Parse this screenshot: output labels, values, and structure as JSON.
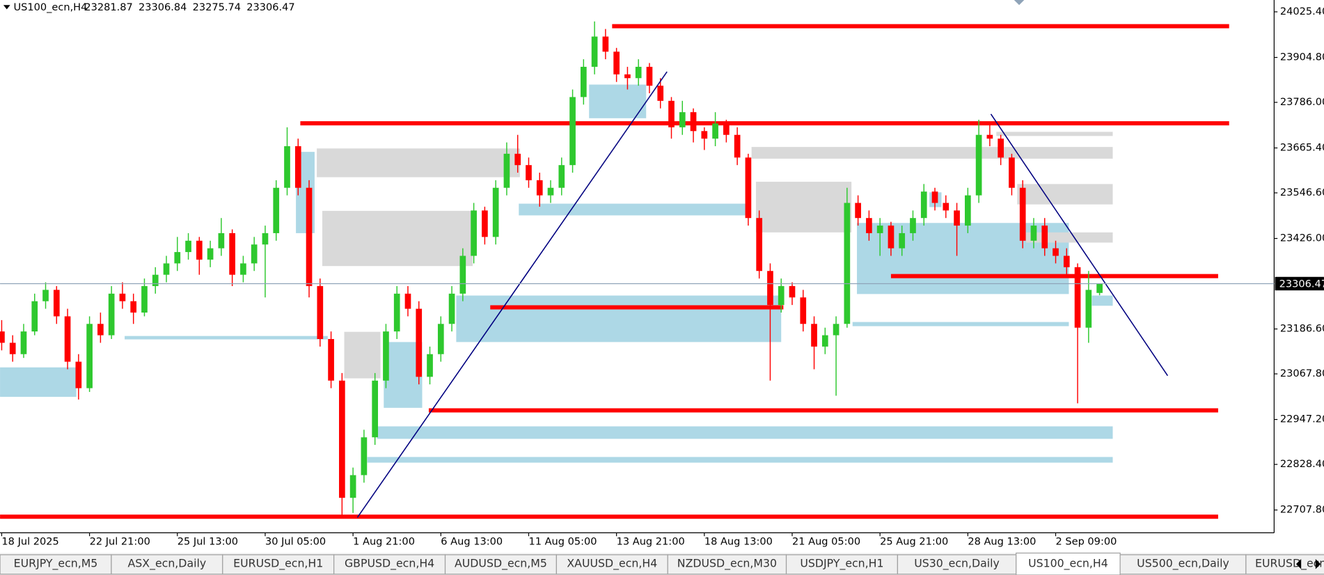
{
  "chart_data": {
    "type": "candlestick",
    "symbol": "US100_ecn,H4",
    "colors": {
      "up": "#2ec82e",
      "down": "#ff0000",
      "level": "#ff0000",
      "price_line": "#8fa3b8"
    },
    "xlim": [
      -0.15,
      115.9
    ],
    "ylim": [
      22647.5,
      24056.7
    ],
    "xticks": [
      {
        "value": 0,
        "label": "18 Jul 2025"
      },
      {
        "value": 8,
        "label": "22 Jul 21:00"
      },
      {
        "value": 16,
        "label": "25 Jul 13:00"
      },
      {
        "value": 24,
        "label": "30 Jul 05:00"
      },
      {
        "value": 32,
        "label": "1 Aug 21:00"
      },
      {
        "value": 40,
        "label": "6 Aug 13:00"
      },
      {
        "value": 48,
        "label": "11 Aug 05:00"
      },
      {
        "value": 56,
        "label": "13 Aug 21:00"
      },
      {
        "value": 64,
        "label": "18 Aug 13:00"
      },
      {
        "value": 72,
        "label": "21 Aug 05:00"
      },
      {
        "value": 80,
        "label": "25 Aug 21:00"
      },
      {
        "value": 88,
        "label": "28 Aug 13:00"
      },
      {
        "value": 96,
        "label": "2 Sep 09:00"
      }
    ],
    "yticks": [
      {
        "value": 24025.4,
        "label": "24025.40"
      },
      {
        "value": 23904.8,
        "label": "23904.80"
      },
      {
        "value": 23786,
        "label": "23786.00"
      },
      {
        "value": 23665.4,
        "label": "23665.40"
      },
      {
        "value": 23546.6,
        "label": "23546.60"
      },
      {
        "value": 23426,
        "label": "23426.00"
      },
      {
        "value": 23186.6,
        "label": "23186.60"
      },
      {
        "value": 23067.8,
        "label": "23067.80"
      },
      {
        "value": 22947.2,
        "label": "22947.20"
      },
      {
        "value": 22828.4,
        "label": "22828.40"
      },
      {
        "value": 22707.8,
        "label": "22707.80"
      }
    ],
    "candles": [
      [
        23180,
        23210,
        23130,
        23150
      ],
      [
        23150,
        23170,
        23100,
        23120
      ],
      [
        23120,
        23200,
        23110,
        23180
      ],
      [
        23180,
        23280,
        23170,
        23260
      ],
      [
        23260,
        23310,
        23240,
        23290
      ],
      [
        23290,
        23300,
        23200,
        23220
      ],
      [
        23220,
        23240,
        23080,
        23100
      ],
      [
        23100,
        23120,
        23000,
        23030
      ],
      [
        23030,
        23220,
        23020,
        23200
      ],
      [
        23200,
        23230,
        23150,
        23170
      ],
      [
        23170,
        23300,
        23160,
        23280
      ],
      [
        23280,
        23310,
        23240,
        23260
      ],
      [
        23260,
        23280,
        23200,
        23230
      ],
      [
        23230,
        23320,
        23220,
        23300
      ],
      [
        23300,
        23350,
        23280,
        23330
      ],
      [
        23330,
        23380,
        23310,
        23360
      ],
      [
        23360,
        23430,
        23340,
        23390
      ],
      [
        23390,
        23440,
        23370,
        23420
      ],
      [
        23420,
        23430,
        23330,
        23370
      ],
      [
        23370,
        23420,
        23350,
        23400
      ],
      [
        23400,
        23480,
        23380,
        23440
      ],
      [
        23440,
        23450,
        23300,
        23330
      ],
      [
        23330,
        23380,
        23310,
        23360
      ],
      [
        23360,
        23430,
        23340,
        23410
      ],
      [
        23410,
        23460,
        23270,
        23440
      ],
      [
        23440,
        23580,
        23420,
        23560
      ],
      [
        23560,
        23720,
        23540,
        23670
      ],
      [
        23670,
        23690,
        23540,
        23560
      ],
      [
        23560,
        23580,
        23270,
        23300
      ],
      [
        23300,
        23320,
        23140,
        23160
      ],
      [
        23160,
        23180,
        23030,
        23050
      ],
      [
        23050,
        23070,
        22690,
        22740
      ],
      [
        22740,
        22820,
        22700,
        22800
      ],
      [
        22800,
        22920,
        22780,
        22900
      ],
      [
        22900,
        23070,
        22880,
        23050
      ],
      [
        23050,
        23200,
        23030,
        23180
      ],
      [
        23180,
        23300,
        23160,
        23280
      ],
      [
        23280,
        23300,
        23220,
        23240
      ],
      [
        23240,
        23260,
        23040,
        23060
      ],
      [
        23060,
        23140,
        23040,
        23120
      ],
      [
        23120,
        23220,
        23100,
        23200
      ],
      [
        23200,
        23300,
        23180,
        23280
      ],
      [
        23280,
        23400,
        23260,
        23380
      ],
      [
        23380,
        23520,
        23360,
        23500
      ],
      [
        23500,
        23510,
        23410,
        23430
      ],
      [
        23430,
        23580,
        23410,
        23560
      ],
      [
        23560,
        23680,
        23540,
        23650
      ],
      [
        23650,
        23700,
        23600,
        23620
      ],
      [
        23620,
        23640,
        23560,
        23580
      ],
      [
        23580,
        23600,
        23510,
        23540
      ],
      [
        23540,
        23580,
        23520,
        23560
      ],
      [
        23560,
        23640,
        23540,
        23620
      ],
      [
        23620,
        23820,
        23600,
        23800
      ],
      [
        23800,
        23900,
        23780,
        23880
      ],
      [
        23880,
        24000,
        23860,
        23960
      ],
      [
        23960,
        23980,
        23900,
        23920
      ],
      [
        23920,
        23930,
        23840,
        23860
      ],
      [
        23860,
        23880,
        23820,
        23850
      ],
      [
        23850,
        23900,
        23830,
        23880
      ],
      [
        23880,
        23890,
        23810,
        23830
      ],
      [
        23830,
        23850,
        23770,
        23790
      ],
      [
        23790,
        23800,
        23690,
        23720
      ],
      [
        23720,
        23790,
        23700,
        23760
      ],
      [
        23760,
        23770,
        23680,
        23710
      ],
      [
        23710,
        23720,
        23660,
        23690
      ],
      [
        23690,
        23760,
        23670,
        23730
      ],
      [
        23730,
        23740,
        23680,
        23700
      ],
      [
        23700,
        23720,
        23620,
        23640
      ],
      [
        23640,
        23650,
        23460,
        23480
      ],
      [
        23480,
        23500,
        23320,
        23340
      ],
      [
        23340,
        23360,
        23050,
        23250
      ],
      [
        23250,
        23320,
        23230,
        23300
      ],
      [
        23300,
        23310,
        23250,
        23270
      ],
      [
        23270,
        23290,
        23180,
        23200
      ],
      [
        23200,
        23220,
        23080,
        23140
      ],
      [
        23140,
        23190,
        23120,
        23170
      ],
      [
        23170,
        23220,
        23010,
        23200
      ],
      [
        23200,
        23560,
        23190,
        23520
      ],
      [
        23520,
        23540,
        23460,
        23480
      ],
      [
        23480,
        23500,
        23420,
        23440
      ],
      [
        23440,
        23480,
        23380,
        23460
      ],
      [
        23460,
        23470,
        23380,
        23400
      ],
      [
        23400,
        23460,
        23380,
        23440
      ],
      [
        23440,
        23500,
        23420,
        23480
      ],
      [
        23480,
        23570,
        23460,
        23550
      ],
      [
        23550,
        23560,
        23500,
        23520
      ],
      [
        23520,
        23540,
        23480,
        23500
      ],
      [
        23500,
        23520,
        23380,
        23460
      ],
      [
        23460,
        23560,
        23440,
        23540
      ],
      [
        23540,
        23740,
        23520,
        23700
      ],
      [
        23700,
        23730,
        23670,
        23690
      ],
      [
        23690,
        23700,
        23620,
        23640
      ],
      [
        23640,
        23650,
        23540,
        23560
      ],
      [
        23560,
        23580,
        23400,
        23420
      ],
      [
        23420,
        23480,
        23400,
        23460
      ],
      [
        23460,
        23480,
        23380,
        23400
      ],
      [
        23400,
        23420,
        23360,
        23380
      ],
      [
        23380,
        23400,
        23330,
        23350
      ],
      [
        23350,
        23360,
        22990,
        23190
      ],
      [
        23190,
        23340,
        23150,
        23290
      ],
      [
        23281.87,
        23306.84,
        23275.74,
        23306.47
      ]
    ],
    "zones": [
      {
        "low": 23007,
        "high": 23085,
        "start": -0.15,
        "end": 6.8,
        "color": "#add8e6"
      },
      {
        "low": 23159,
        "high": 23168,
        "start": 11.2,
        "end": 29.7,
        "color": "#add8e6"
      },
      {
        "low": 23440,
        "high": 23655,
        "start": 26.8,
        "end": 28.5,
        "color": "#add8e6"
      },
      {
        "low": 23152,
        "high": 23275,
        "start": 41.4,
        "end": 71,
        "color": "#add8e6"
      },
      {
        "low": 22978,
        "high": 23152,
        "start": 34.8,
        "end": 38.3,
        "color": "#add8e6"
      },
      {
        "low": 22896,
        "high": 22929,
        "start": 34.2,
        "end": 101.2,
        "color": "#add8e6"
      },
      {
        "low": 22833,
        "high": 22848,
        "start": 33.3,
        "end": 101.2,
        "color": "#add8e6"
      },
      {
        "low": 23487,
        "high": 23518,
        "start": 47.1,
        "end": 68.1,
        "color": "#add8e6"
      },
      {
        "low": 23744,
        "high": 23833,
        "start": 53.5,
        "end": 58.7,
        "color": "#add8e6"
      },
      {
        "low": 23279,
        "high": 23467,
        "start": 77.9,
        "end": 97.2,
        "color": "#add8e6"
      },
      {
        "low": 23194,
        "high": 23205,
        "start": 77.5,
        "end": 97.2,
        "color": "#add8e6"
      },
      {
        "low": 23248,
        "high": 23275,
        "start": 99.3,
        "end": 101.2,
        "color": "#add8e6"
      },
      {
        "low": 23509,
        "high": 23548,
        "start": 84.5,
        "end": 85.6,
        "color": "#add8e6"
      },
      {
        "low": 23588,
        "high": 23664,
        "start": 28.7,
        "end": 47.2,
        "color": "#d9d9d9"
      },
      {
        "low": 23353,
        "high": 23499,
        "start": 29.2,
        "end": 42.9,
        "color": "#d9d9d9"
      },
      {
        "low": 23056,
        "high": 23179,
        "start": 31.2,
        "end": 34.5,
        "color": "#d9d9d9"
      },
      {
        "low": 23442,
        "high": 23576,
        "start": 68.7,
        "end": 77.4,
        "color": "#d9d9d9"
      },
      {
        "low": 23516,
        "high": 23570,
        "start": 92.5,
        "end": 101.2,
        "color": "#d9d9d9"
      },
      {
        "low": 23415,
        "high": 23442,
        "start": 93.3,
        "end": 101.2,
        "color": "#d9d9d9"
      },
      {
        "low": 23637,
        "high": 23668,
        "start": 68.3,
        "end": 101.2,
        "color": "#d9d9d9"
      },
      {
        "low": 23697,
        "high": 23708,
        "start": 90.6,
        "end": 101.2,
        "color": "#d9d9d9"
      }
    ],
    "levels": [
      {
        "price": 23987.4,
        "start": 55.6,
        "end": 111.8
      },
      {
        "price": 23730.6,
        "start": 27.2,
        "end": 111.8
      },
      {
        "price": 23243.8,
        "start": 44.5,
        "end": 71.2
      },
      {
        "price": 22971.3,
        "start": 38.9,
        "end": 110.8
      },
      {
        "price": 22690,
        "start": -0.15,
        "end": 110.8
      },
      {
        "price": 23326.4,
        "start": 81,
        "end": 110.8
      }
    ],
    "trendlines": [
      {
        "points": [
          [
            32.4,
            22688
          ],
          [
            60.6,
            23867
          ]
        ],
        "color": "#000080"
      },
      {
        "points": [
          [
            90.1,
            23755
          ],
          [
            106.2,
            23063
          ]
        ],
        "color": "#000080"
      }
    ],
    "tabs": [
      "EURJPY_ecn,M5",
      "ASX_ecn,Daily",
      "EURUSD_ecn,H1",
      "GBPUSD_ecn,H4",
      "AUDUSD_ecn,M5",
      "XAUUSD_ecn,H4",
      "NZDUSD_ecn,M30",
      "USDJPY_ecn,H1",
      "US30_ecn,Daily",
      "US100_ecn,H4",
      "US500_ecn,Daily",
      "EURUSD_ecn"
    ],
    "active_tab": 9
  }
}
